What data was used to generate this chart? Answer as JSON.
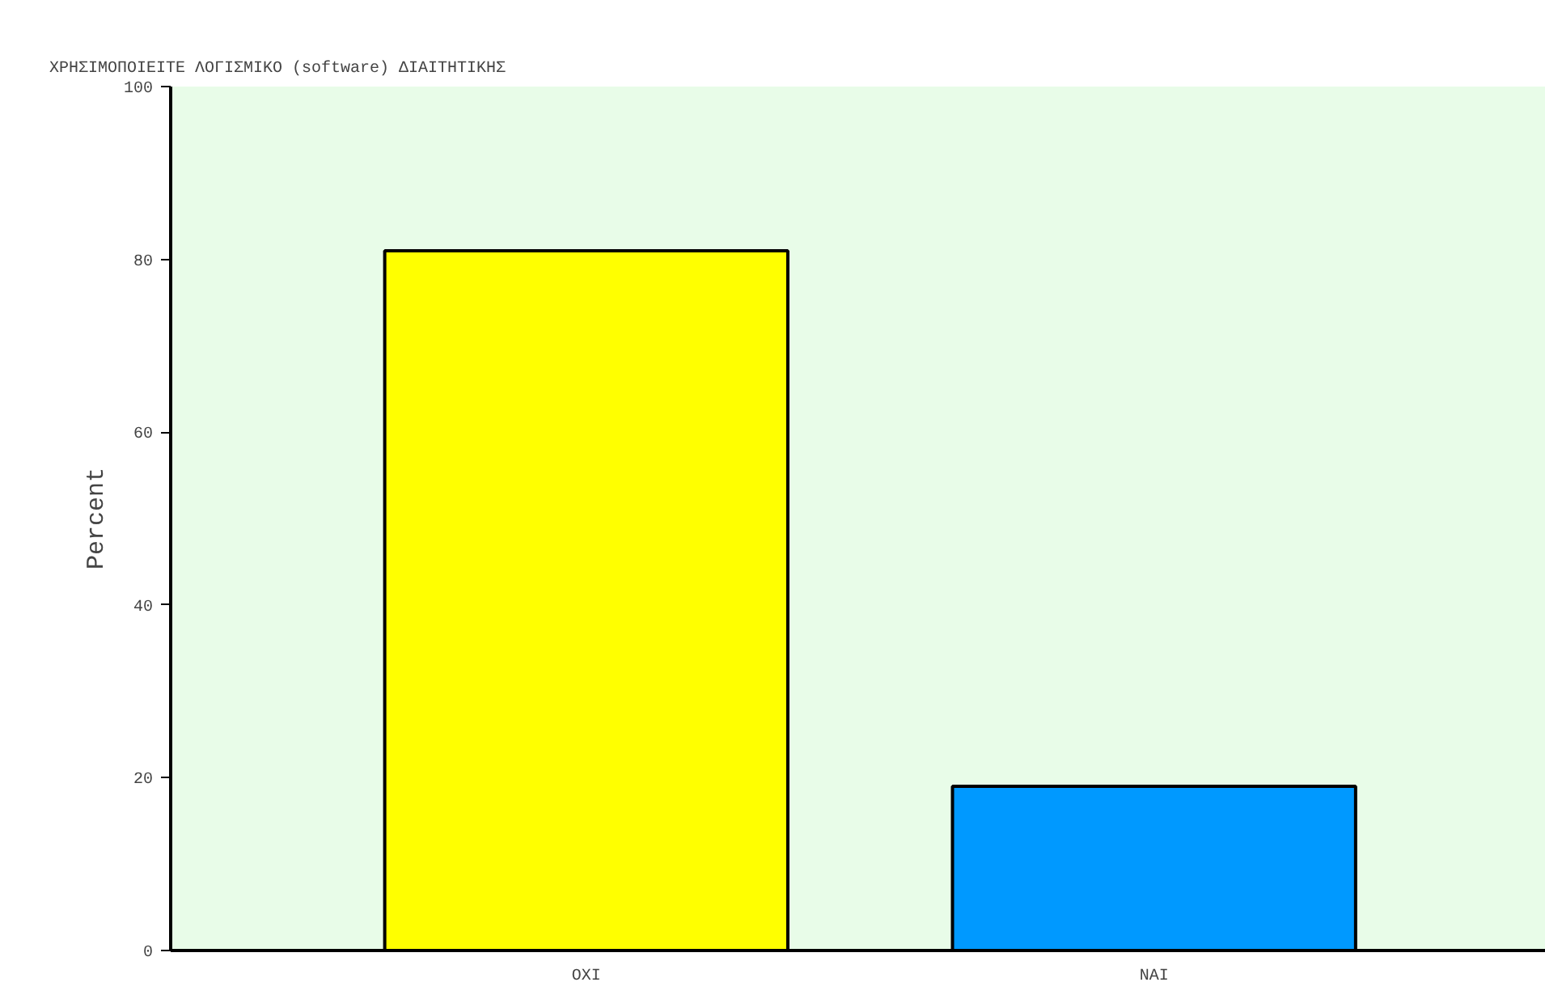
{
  "chart_data": {
    "type": "bar",
    "title": "ΧΡΗΣΙΜΟΠΟΙΕΙΤΕ ΛΟΓΙΣΜΙΚΟ (software) ΔΙΑΙΤΗΤΙΚΗΣ",
    "categories": [
      "ΟΧΙ",
      "ΝΑΙ"
    ],
    "values": [
      81,
      19
    ],
    "colors": [
      "#ffff00",
      "#0099ff"
    ],
    "ylabel": "Percent",
    "ylim": [
      0,
      100
    ],
    "yticks": [
      0,
      20,
      40,
      60,
      80,
      100
    ],
    "grid": false
  }
}
